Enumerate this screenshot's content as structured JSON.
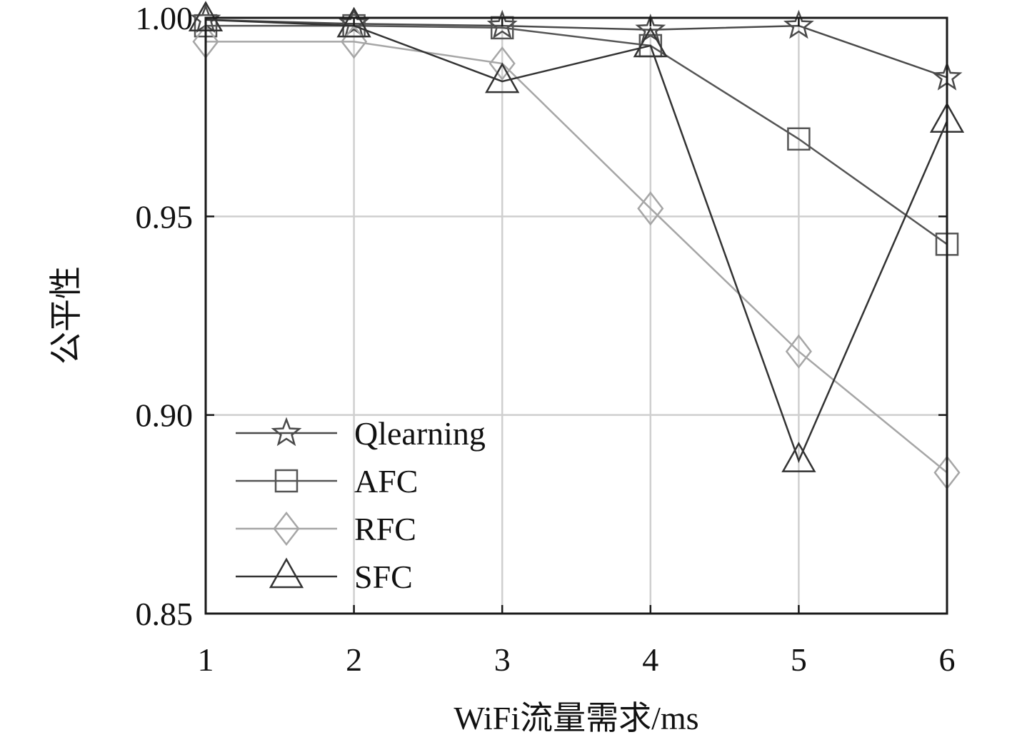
{
  "chart_data": {
    "type": "line",
    "title": "",
    "xlabel": "WiFi流量需求/ms",
    "ylabel": "公平性",
    "x": [
      1,
      2,
      3,
      4,
      5,
      6
    ],
    "xlim": [
      1,
      6
    ],
    "ylim": [
      0.85,
      1.0
    ],
    "x_ticks": [
      1,
      2,
      3,
      4,
      5,
      6
    ],
    "x_tick_labels": [
      "1",
      "2",
      "3",
      "4",
      "5",
      "6"
    ],
    "y_ticks": [
      0.85,
      0.9,
      0.95,
      1.0
    ],
    "y_tick_labels": [
      "0.85",
      "0.90",
      "0.95",
      "1.00"
    ],
    "grid": true,
    "legend_position": "bottom-left",
    "series": [
      {
        "name": "Qlearning",
        "marker": "star",
        "color": "#4a4a4a",
        "values": [
          0.9995,
          0.9985,
          0.998,
          0.997,
          0.998,
          0.985
        ]
      },
      {
        "name": "AFC",
        "marker": "square",
        "color": "#555555",
        "values": [
          0.998,
          0.998,
          0.9975,
          0.993,
          0.9695,
          0.943
        ]
      },
      {
        "name": "RFC",
        "marker": "diamond",
        "color": "#a6a6a6",
        "values": [
          0.994,
          0.994,
          0.9885,
          0.952,
          0.916,
          0.8855
        ]
      },
      {
        "name": "SFC",
        "marker": "triangle",
        "color": "#333333",
        "values": [
          0.9995,
          0.998,
          0.984,
          0.993,
          0.8885,
          0.974
        ]
      }
    ]
  }
}
